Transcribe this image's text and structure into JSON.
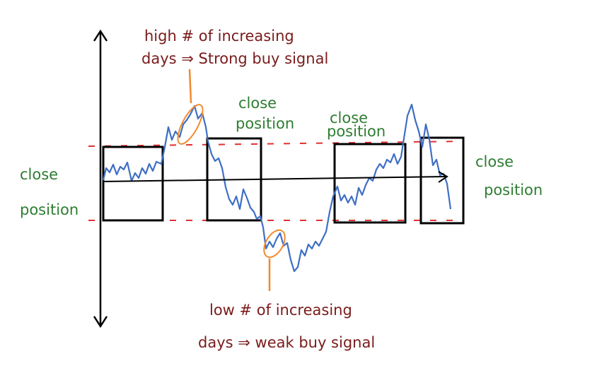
{
  "annotations": {
    "top_note_line1": "high # of increasing",
    "top_note_line2": "days ⇒ Strong buy signal",
    "bottom_note_line1": "low # of increasing",
    "bottom_note_line2": "days ⇒ weak buy signal",
    "left_label_line1": "close",
    "left_label_line2": "position",
    "mid_label_line1": "close",
    "mid_label_line2": "position",
    "center_right_label_line1": "close",
    "center_right_label_line2": "position",
    "right_label_line1": "close",
    "right_label_line2": "position"
  },
  "colors": {
    "price_line": "#3f6fc4",
    "boxes": "#000000",
    "dashed_bounds": "#e03030",
    "highlight_ellipses": "#f28a2e",
    "label_green": "#2e7d32",
    "label_red": "#7a1b1b"
  },
  "icons": {
    "vertical_axis": "double-arrow-vertical",
    "trend_arrow": "arrow-right"
  }
}
